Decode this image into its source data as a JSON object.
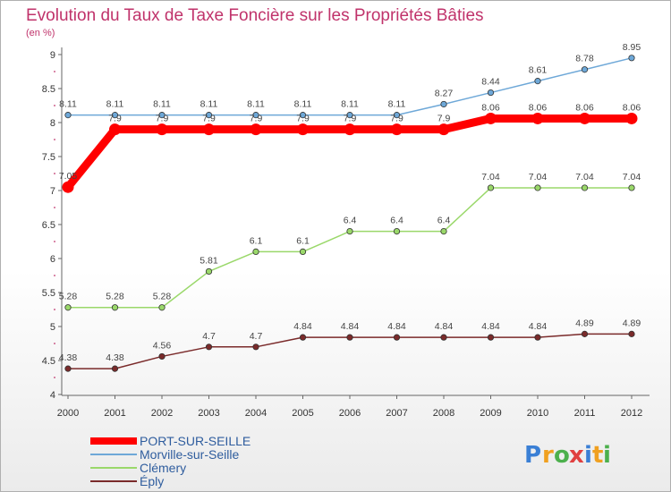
{
  "chart_data": {
    "type": "line",
    "title": "Evolution du Taux de Taxe Foncière sur les Propriétés Bâties",
    "subtitle": "(en %)",
    "xlabel": "",
    "ylabel": "",
    "x": [
      "2000",
      "2001",
      "2002",
      "2003",
      "2004",
      "2005",
      "2006",
      "2007",
      "2008",
      "2009",
      "2010",
      "2011",
      "2012"
    ],
    "ylim": [
      4,
      9
    ],
    "yticks": [
      "4",
      "4.5",
      "5",
      "5.5",
      "6",
      "6.5",
      "7",
      "7.5",
      "8",
      "8.5",
      "9"
    ],
    "grid": false,
    "legend_position": "bottom-left",
    "series": [
      {
        "name": "PORT-SUR-SEILLE",
        "color": "#ff0000",
        "values": [
          7.05,
          7.9,
          7.9,
          7.9,
          7.9,
          7.9,
          7.9,
          7.9,
          7.9,
          8.06,
          8.06,
          8.06,
          8.06
        ],
        "labels": [
          "7.05",
          "7.9",
          "7.9",
          "7.9",
          "7.9",
          "7.9",
          "7.9",
          "7.9",
          "7.9",
          "8.06",
          "8.06",
          "8.06",
          "8.06"
        ]
      },
      {
        "name": "Morville-sur-Seille",
        "color": "#6ea8d8",
        "values": [
          8.11,
          8.11,
          8.11,
          8.11,
          8.11,
          8.11,
          8.11,
          8.11,
          8.27,
          8.44,
          8.61,
          8.78,
          8.95
        ],
        "labels": [
          "8.11",
          "8.11",
          "8.11",
          "8.11",
          "8.11",
          "8.11",
          "8.11",
          "8.11",
          "8.27",
          "8.44",
          "8.61",
          "8.78",
          "8.95"
        ]
      },
      {
        "name": "Clémery",
        "color": "#9ad86a",
        "values": [
          5.28,
          5.28,
          5.28,
          5.81,
          6.1,
          6.1,
          6.4,
          6.4,
          6.4,
          7.04,
          7.04,
          7.04,
          7.04
        ],
        "labels": [
          "5.28",
          "5.28",
          "5.28",
          "5.81",
          "6.1",
          "6.1",
          "6.4",
          "6.4",
          "6.4",
          "7.04",
          "7.04",
          "7.04",
          "7.04"
        ]
      },
      {
        "name": "Éply",
        "color": "#7a2a2a",
        "values": [
          4.38,
          4.38,
          4.56,
          4.7,
          4.7,
          4.84,
          4.84,
          4.84,
          4.84,
          4.84,
          4.84,
          4.89,
          4.89
        ],
        "labels": [
          "4.38",
          "4.38",
          "4.56",
          "4.7",
          "4.7",
          "4.84",
          "4.84",
          "4.84",
          "4.84",
          "4.84",
          "4.84",
          "4.89",
          "4.89"
        ]
      }
    ]
  },
  "logo": {
    "letters": [
      "P",
      "r",
      "o",
      "x",
      "i",
      "t",
      "i"
    ],
    "colors": [
      "#3a7fd5",
      "#f0a020",
      "#4cb04c",
      "#e04040",
      "#3a7fd5",
      "#f0a020",
      "#4cb04c"
    ]
  }
}
